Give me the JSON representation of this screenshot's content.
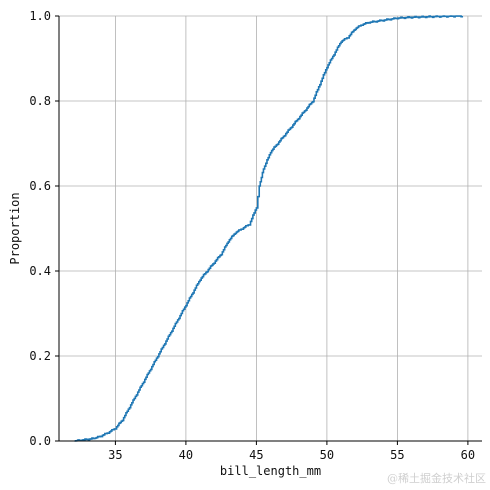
{
  "chart_data": {
    "type": "line",
    "subtype": "ecdf",
    "title": "",
    "xlabel": "bill_length_mm",
    "ylabel": "Proportion",
    "xlim": [
      31,
      61
    ],
    "ylim": [
      0,
      1
    ],
    "xticks": [
      35,
      40,
      45,
      50,
      55,
      60
    ],
    "yticks": [
      0.0,
      0.2,
      0.4,
      0.6,
      0.8,
      1.0
    ],
    "xtick_labels": [
      "35",
      "40",
      "45",
      "50",
      "55",
      "60"
    ],
    "ytick_labels": [
      "0.0",
      "0.2",
      "0.4",
      "0.6",
      "0.8",
      "1.0"
    ],
    "grid": true,
    "series": [
      {
        "color": "#1f77b4",
        "x": [
          32.1,
          33.5,
          34.0,
          34.5,
          35.0,
          35.5,
          36.0,
          36.5,
          37.0,
          37.5,
          38.0,
          38.5,
          39.0,
          39.5,
          40.0,
          40.5,
          41.0,
          41.5,
          42.0,
          42.5,
          43.0,
          43.5,
          44.0,
          44.5,
          45.0,
          45.2,
          45.5,
          46.0,
          46.5,
          47.0,
          47.5,
          48.0,
          48.5,
          49.0,
          49.5,
          50.0,
          50.5,
          51.0,
          51.5,
          52.0,
          52.5,
          53.0,
          54.0,
          55.0,
          56.0,
          57.0,
          58.0,
          59.6
        ],
        "y": [
          0.0,
          0.006,
          0.012,
          0.02,
          0.03,
          0.05,
          0.08,
          0.11,
          0.14,
          0.17,
          0.2,
          0.23,
          0.26,
          0.29,
          0.32,
          0.35,
          0.38,
          0.4,
          0.42,
          0.44,
          0.47,
          0.49,
          0.5,
          0.51,
          0.55,
          0.6,
          0.64,
          0.68,
          0.7,
          0.72,
          0.74,
          0.76,
          0.78,
          0.8,
          0.84,
          0.88,
          0.91,
          0.94,
          0.95,
          0.97,
          0.98,
          0.985,
          0.99,
          0.995,
          0.997,
          0.998,
          0.999,
          1.0
        ]
      }
    ]
  },
  "watermark": "@稀土掘金技术社区"
}
